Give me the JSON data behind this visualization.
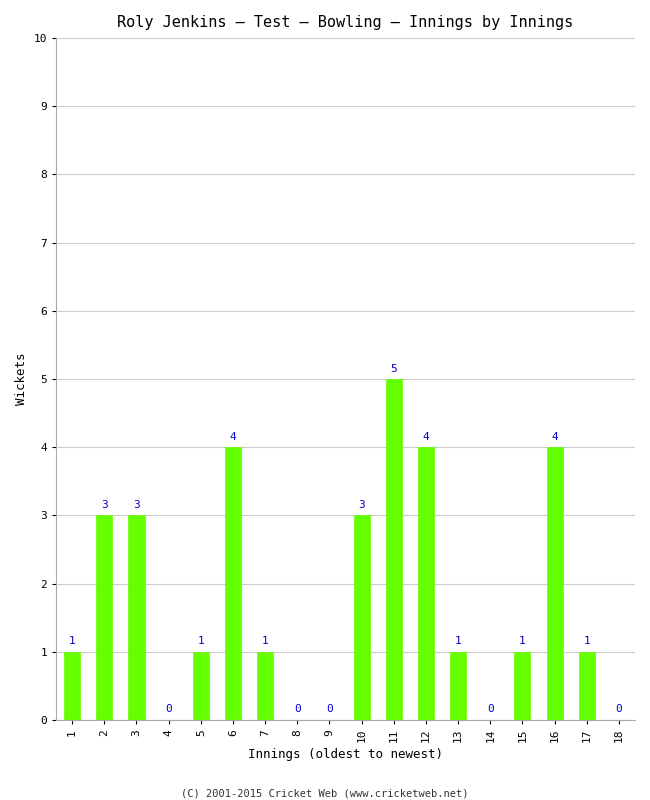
{
  "title": "Roly Jenkins – Test – Bowling – Innings by Innings",
  "xlabel": "Innings (oldest to newest)",
  "ylabel": "Wickets",
  "categories": [
    "1",
    "2",
    "3",
    "4",
    "5",
    "6",
    "7",
    "8",
    "9",
    "10",
    "11",
    "12",
    "13",
    "14",
    "15",
    "16",
    "17",
    "18"
  ],
  "values": [
    1,
    3,
    3,
    0,
    1,
    4,
    1,
    0,
    0,
    3,
    5,
    4,
    1,
    0,
    1,
    4,
    1,
    0
  ],
  "bar_color": "#66ff00",
  "bar_edge_color": "#66ff00",
  "ylim": [
    0,
    10
  ],
  "yticks": [
    0,
    1,
    2,
    3,
    4,
    5,
    6,
    7,
    8,
    9,
    10
  ],
  "label_color": "#0000cc",
  "label_fontsize": 8,
  "title_fontsize": 11,
  "axis_label_fontsize": 9,
  "tick_fontsize": 8,
  "background_color": "#ffffff",
  "grid_color": "#cccccc",
  "footer": "(C) 2001-2015 Cricket Web (www.cricketweb.net)",
  "bar_width": 0.5
}
